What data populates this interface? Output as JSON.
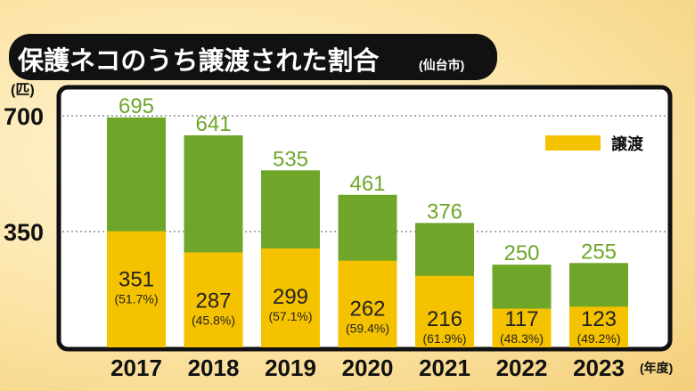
{
  "chart_data": {
    "type": "bar",
    "stacked": true,
    "title": "保護ネコのうち譲渡された割合",
    "subtitle": "(仙台市)",
    "ylabel": "(匹)",
    "xlabel": "(年度)",
    "ylim": [
      0,
      700
    ],
    "yticks": [
      "700",
      "350"
    ],
    "ytick_values": [
      700,
      350
    ],
    "grid": true,
    "legend": {
      "label": "譲渡",
      "placement": "top-right"
    },
    "categories": [
      "2017",
      "2018",
      "2019",
      "2020",
      "2021",
      "2022",
      "2023"
    ],
    "totals": [
      695,
      641,
      535,
      461,
      376,
      250,
      255
    ],
    "series": [
      {
        "name": "譲渡",
        "values": [
          351,
          287,
          299,
          262,
          216,
          117,
          123
        ],
        "percent_labels": [
          "(51.7%)",
          "(45.8%)",
          "(57.1%)",
          "(59.4%)",
          "(61.9%)",
          "(48.3%)",
          "(49.2%)"
        ]
      },
      {
        "name": "保護",
        "values": [
          344,
          354,
          236,
          199,
          160,
          133,
          132
        ]
      }
    ],
    "colors": {
      "transfer": "#f5c200",
      "total": "#6fa62a",
      "total_label": "#6fa62a"
    }
  }
}
